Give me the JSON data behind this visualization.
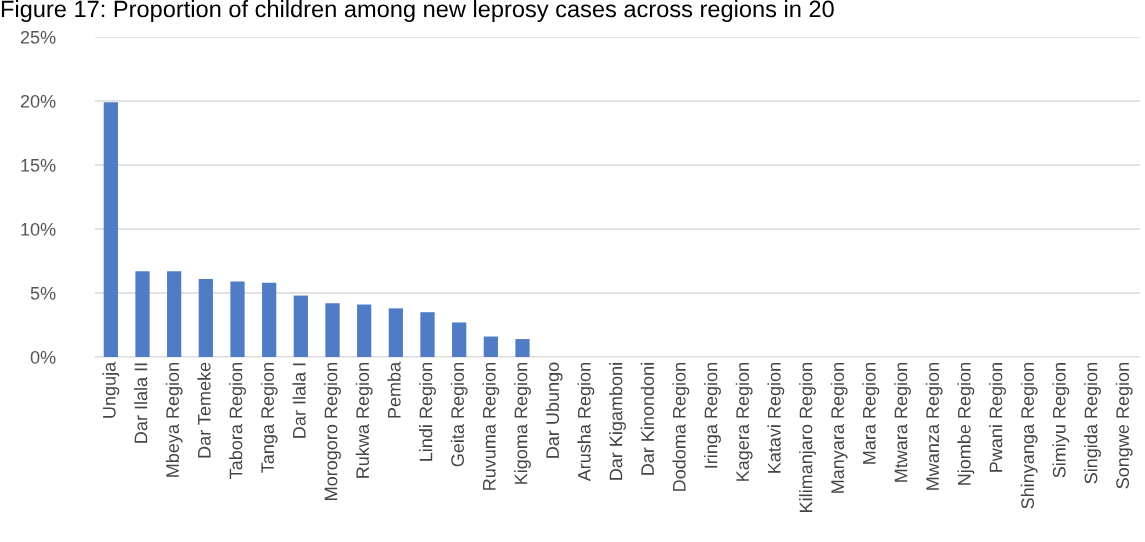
{
  "chart_data": {
    "type": "bar",
    "title": "Figure 17: Proportion of children among new leprosy cases across regions in 20",
    "categories": [
      "Unguja",
      "Dar Ilala II",
      "Mbeya Region",
      "Dar Temeke",
      "Tabora Region",
      "Tanga Region",
      "Dar Ilala I",
      "Morogoro Region",
      "Rukwa Region",
      "Pemba",
      "Lindi Region",
      "Geita Region",
      "Ruvuma Region",
      "Kigoma Region",
      "Dar Ubungo",
      "Arusha Region",
      "Dar Kigamboni",
      "Dar Kinondoni",
      "Dodoma Region",
      "Iringa Region",
      "Kagera Region",
      "Katavi Region",
      "Kilimanjaro Region",
      "Manyara Region",
      "Mara Region",
      "Mtwara Region",
      "Mwanza Region",
      "Njombe Region",
      "Pwani Region",
      "Shinyanga Region",
      "Simiyu Region",
      "Singida Region",
      "Songwe Region"
    ],
    "values": [
      19.9,
      6.7,
      6.7,
      6.1,
      5.9,
      5.8,
      4.8,
      4.2,
      4.1,
      3.8,
      3.5,
      2.7,
      1.6,
      1.4,
      0,
      0,
      0,
      0,
      0,
      0,
      0,
      0,
      0,
      0,
      0,
      0,
      0,
      0,
      0,
      0,
      0,
      0,
      0
    ],
    "color": "#4f7cc4",
    "ylim": [
      0,
      25
    ],
    "yticks": [
      {
        "value": 0,
        "label": "0%"
      },
      {
        "value": 5,
        "label": "5%"
      },
      {
        "value": 10,
        "label": "10%"
      },
      {
        "value": 15,
        "label": "15%"
      },
      {
        "value": 20,
        "label": "20%"
      },
      {
        "value": 25,
        "label": "25%"
      }
    ],
    "grid": "y"
  }
}
